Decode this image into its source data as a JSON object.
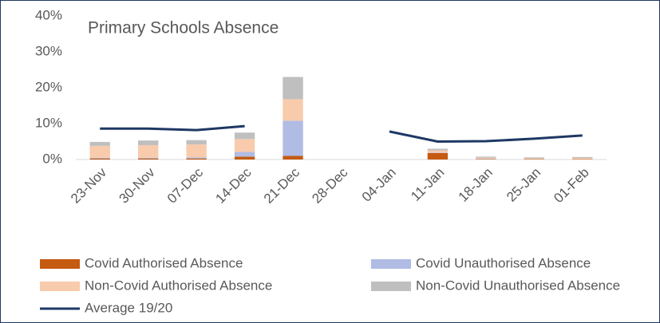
{
  "chart_data": {
    "type": "bar",
    "stacked": true,
    "title": "Primary Schools Absence",
    "categories": [
      "23-Nov",
      "30-Nov",
      "07-Dec",
      "14-Dec",
      "21-Dec",
      "28-Dec",
      "04-Jan",
      "11-Jan",
      "18-Jan",
      "25-Jan",
      "01-Feb"
    ],
    "series": [
      {
        "name": "Covid Authorised Absence",
        "color": "#c55a11",
        "values": [
          0.3,
          0.3,
          0.3,
          0.8,
          1.0,
          null,
          null,
          1.8,
          0.1,
          0.1,
          0.1
        ]
      },
      {
        "name": "Covid Unauthorised Absence",
        "color": "#b0bce4",
        "values": [
          0.2,
          0.2,
          0.3,
          1.3,
          9.8,
          null,
          null,
          0.1,
          0.1,
          0.0,
          0.0
        ]
      },
      {
        "name": "Non-Covid Authorised Absence",
        "color": "#f8cbad",
        "values": [
          3.3,
          3.5,
          3.6,
          3.6,
          6.0,
          null,
          null,
          0.6,
          0.3,
          0.2,
          0.3
        ]
      },
      {
        "name": "Non-Covid Unauthorised Absence",
        "color": "#bfbfbf",
        "values": [
          1.1,
          1.3,
          1.2,
          1.8,
          6.2,
          null,
          null,
          0.5,
          0.3,
          0.3,
          0.3
        ]
      },
      {
        "name": "Average 19/20",
        "color": "#1f3864",
        "type": "line",
        "values": [
          8.6,
          8.6,
          8.2,
          9.3,
          null,
          null,
          7.8,
          5.0,
          5.1,
          5.8,
          6.7
        ]
      }
    ],
    "ylim": [
      0,
      40
    ],
    "yticks": [
      {
        "value": 0,
        "label": "0%"
      },
      {
        "value": 10,
        "label": "10%"
      },
      {
        "value": 20,
        "label": "20%"
      },
      {
        "value": 30,
        "label": "30%"
      },
      {
        "value": 40,
        "label": "40%"
      }
    ],
    "grid": false
  }
}
